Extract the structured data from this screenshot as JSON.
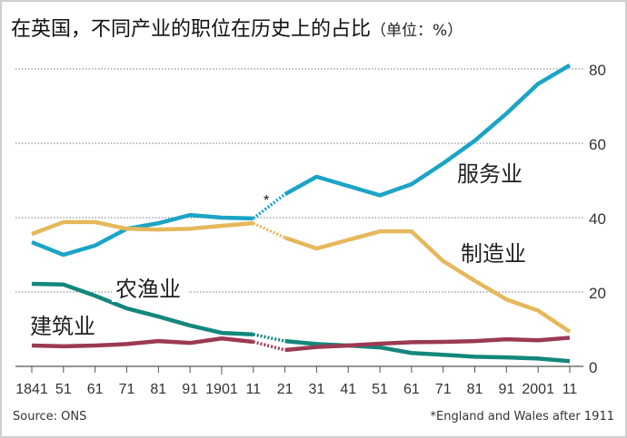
{
  "chart_data": {
    "type": "line",
    "title": "在英国，不同产业的职位在历史上的占比",
    "unit": "（单位：%）",
    "x": [
      1841,
      1851,
      1861,
      1871,
      1881,
      1891,
      1901,
      1911,
      1921,
      1931,
      1941,
      1951,
      1961,
      1971,
      1981,
      1991,
      2001,
      2011
    ],
    "x_tick_labels": [
      "1841",
      "51",
      "61",
      "71",
      "81",
      "91",
      "1901",
      "11",
      "21",
      "31",
      "41",
      "51",
      "61",
      "71",
      "81",
      "91",
      "2001",
      "11"
    ],
    "ylim": [
      0,
      80
    ],
    "y_ticks": [
      0,
      20,
      40,
      60,
      80
    ],
    "y_axis_side": "right",
    "grid": "horizontal dotted",
    "dotted_between": [
      1911,
      1921
    ],
    "annotation": "*",
    "series": [
      {
        "name": "服务业",
        "color": "#1ba4c6",
        "values": [
          33.4,
          30,
          32.5,
          37,
          38.5,
          40.7,
          40,
          39.8,
          46.3,
          51,
          48.5,
          46,
          49,
          54.6,
          60.7,
          68,
          76,
          81
        ]
      },
      {
        "name": "制造业",
        "color": "#e6b85c",
        "values": [
          35.6,
          38.8,
          38.8,
          37,
          36.8,
          37,
          37.8,
          38.5,
          34.6,
          31.7,
          34,
          36.3,
          36.3,
          28.3,
          23,
          18,
          15,
          9.3
        ]
      },
      {
        "name": "农渔业",
        "color": "#13877c",
        "values": [
          22.2,
          22,
          19,
          15.6,
          13.4,
          11,
          9,
          8.6,
          6.8,
          6,
          5.6,
          5.1,
          3.6,
          3.1,
          2.6,
          2.4,
          2.1,
          1.4
        ]
      },
      {
        "name": "建筑业",
        "color": "#9b3a52",
        "values": [
          5.6,
          5.4,
          5.6,
          6,
          6.8,
          6.3,
          7.5,
          6.6,
          4.4,
          5.2,
          5.6,
          6.1,
          6.5,
          6.6,
          6.8,
          7.3,
          7,
          7.7
        ]
      }
    ]
  },
  "source": "Source: ONS",
  "footnote": "*England and Wales after 1911"
}
